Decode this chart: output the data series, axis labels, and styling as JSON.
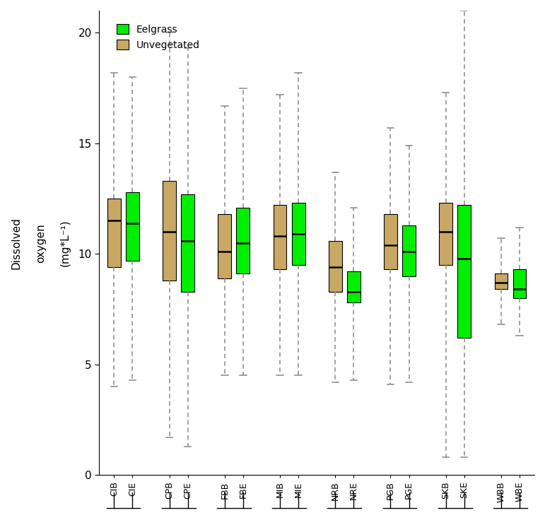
{
  "ylim": [
    0,
    21
  ],
  "yticks": [
    0,
    5,
    10,
    15,
    20
  ],
  "eelgrass_color": "#00ee00",
  "unvegetated_color": "#c8a864",
  "whisker_color": "#888888",
  "boxes": {
    "CIB": {
      "whislo": 4.0,
      "q1": 9.4,
      "med": 11.5,
      "q3": 12.5,
      "whishi": 18.2,
      "type": "U"
    },
    "CIE": {
      "whislo": 4.3,
      "q1": 9.7,
      "med": 11.4,
      "q3": 12.8,
      "whishi": 18.0,
      "type": "E"
    },
    "CPB": {
      "whislo": 1.7,
      "q1": 8.8,
      "med": 11.0,
      "q3": 13.3,
      "whishi": 20.0,
      "type": "U"
    },
    "CPE": {
      "whislo": 1.3,
      "q1": 8.3,
      "med": 10.6,
      "q3": 12.7,
      "whishi": 19.3,
      "type": "E"
    },
    "FBB": {
      "whislo": 4.5,
      "q1": 8.9,
      "med": 10.1,
      "q3": 11.8,
      "whishi": 16.7,
      "type": "U"
    },
    "FBE": {
      "whislo": 4.5,
      "q1": 9.1,
      "med": 10.5,
      "q3": 12.1,
      "whishi": 17.5,
      "type": "E"
    },
    "MIB": {
      "whislo": 4.5,
      "q1": 9.3,
      "med": 10.8,
      "q3": 12.2,
      "whishi": 17.2,
      "type": "U"
    },
    "MIE": {
      "whislo": 4.5,
      "q1": 9.5,
      "med": 10.9,
      "q3": 12.3,
      "whishi": 18.2,
      "type": "E"
    },
    "NRB": {
      "whislo": 4.2,
      "q1": 8.3,
      "med": 9.4,
      "q3": 10.6,
      "whishi": 13.7,
      "type": "U"
    },
    "NRE": {
      "whislo": 4.3,
      "q1": 7.8,
      "med": 8.3,
      "q3": 9.2,
      "whishi": 12.1,
      "type": "E"
    },
    "PGB": {
      "whislo": 4.1,
      "q1": 9.3,
      "med": 10.4,
      "q3": 11.8,
      "whishi": 15.7,
      "type": "U"
    },
    "PGE": {
      "whislo": 4.2,
      "q1": 9.0,
      "med": 10.1,
      "q3": 11.3,
      "whishi": 14.9,
      "type": "E"
    },
    "SKB": {
      "whislo": 0.8,
      "q1": 9.5,
      "med": 11.0,
      "q3": 12.3,
      "whishi": 17.3,
      "type": "U"
    },
    "SKE": {
      "whislo": 0.8,
      "q1": 6.2,
      "med": 9.8,
      "q3": 12.2,
      "whishi": 21.0,
      "type": "E"
    },
    "WBB": {
      "whislo": 6.8,
      "q1": 8.4,
      "med": 8.7,
      "q3": 9.1,
      "whishi": 10.7,
      "type": "U"
    },
    "WBE": {
      "whislo": 6.3,
      "q1": 8.0,
      "med": 8.4,
      "q3": 9.3,
      "whishi": 11.2,
      "type": "E"
    }
  },
  "order": [
    "CIB",
    "CIE",
    "CPB",
    "CPE",
    "FBB",
    "FBE",
    "MIB",
    "MIE",
    "NRB",
    "NRE",
    "PGB",
    "PGE",
    "SKB",
    "SKE",
    "WBB",
    "WBE"
  ],
  "pairs": [
    [
      "CIB",
      "CIE"
    ],
    [
      "CPB",
      "CPE"
    ],
    [
      "FBB",
      "FBE"
    ],
    [
      "MIB",
      "MIE"
    ],
    [
      "NRB",
      "NRE"
    ],
    [
      "PGB",
      "PGE"
    ],
    [
      "SKB",
      "SKE"
    ],
    [
      "WBB",
      "WBE"
    ]
  ]
}
